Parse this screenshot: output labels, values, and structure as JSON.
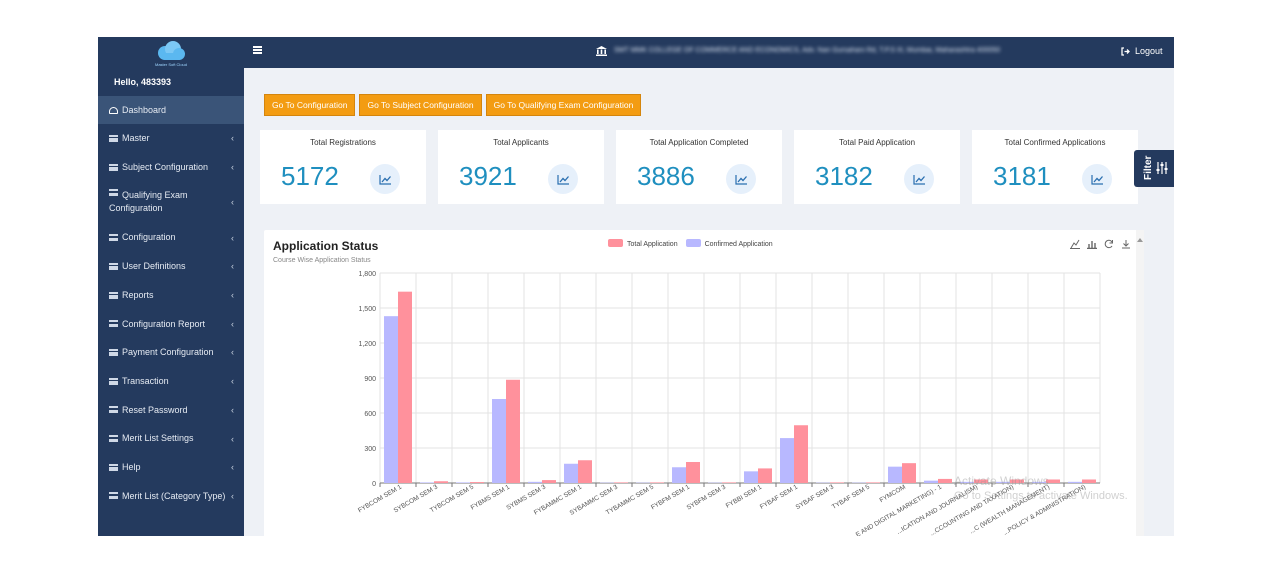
{
  "sidebar": {
    "logo_text": "Master Soft Cloud",
    "greeting": "Hello, 483393",
    "items": [
      {
        "label": "Dashboard",
        "active": true,
        "chevron": false,
        "icon": "dashboard-icon"
      },
      {
        "label": "Master",
        "chevron": true,
        "icon": "list-icon"
      },
      {
        "label": "Subject Configuration",
        "chevron": true,
        "icon": "list-icon"
      },
      {
        "label": "Qualifying Exam",
        "label2": "Configuration",
        "chevron": true,
        "icon": "list-icon"
      },
      {
        "label": "Configuration",
        "chevron": true,
        "icon": "list-icon"
      },
      {
        "label": "User Definitions",
        "chevron": true,
        "icon": "list-icon"
      },
      {
        "label": "Reports",
        "chevron": true,
        "icon": "list-icon"
      },
      {
        "label": "Configuration Report",
        "chevron": true,
        "icon": "list-icon"
      },
      {
        "label": "Payment Configuration",
        "chevron": true,
        "icon": "list-icon"
      },
      {
        "label": "Transaction",
        "chevron": true,
        "icon": "list-icon"
      },
      {
        "label": "Reset Password",
        "chevron": true,
        "icon": "list-icon"
      },
      {
        "label": "Merit List Settings",
        "chevron": true,
        "icon": "list-icon"
      },
      {
        "label": "Help",
        "chevron": true,
        "icon": "list-icon"
      },
      {
        "label": "Merit List (Category Type)",
        "chevron": true,
        "icon": "list-icon"
      }
    ]
  },
  "header": {
    "college_name": "SMT MMK COLLEGE OF COMMERCE AND ECONOMICS, Adv. Nari Gursahani Rd, T.P.S III, Mumbai, Maharashtra 400050",
    "logout_label": "Logout"
  },
  "buttons": {
    "go_config": "Go To Configuration",
    "go_subject_config": "Go To Subject Configuration",
    "go_qualifying_config": "Go To Qualifying Exam Configuration"
  },
  "stats": [
    {
      "title": "Total Registrations",
      "value": "5172"
    },
    {
      "title": "Total Applicants",
      "value": "3921"
    },
    {
      "title": "Total Application Completed",
      "value": "3886"
    },
    {
      "title": "Total Paid Application",
      "value": "3182"
    },
    {
      "title": "Total Confirmed Applications",
      "value": "3181"
    }
  ],
  "filter_label": "Filter",
  "colors": {
    "sidebar_bg": "#243a5e",
    "accent_orange": "#f39c12",
    "stat_number": "#1f8fbf",
    "total_series": "#ff919c",
    "confirmed_series": "#b8b8ff"
  },
  "chart_data": {
    "type": "bar",
    "title": "Application Status",
    "subtitle": "Course  Wise Application Status",
    "legend_position": "top",
    "grid": true,
    "ylim": [
      0,
      1800
    ],
    "yticks": [
      "0",
      "300",
      "600",
      "900",
      "1,200",
      "1,500",
      "1,800"
    ],
    "categories": [
      "FYBCOM SEM 1",
      "SYBCOM SEM 3",
      "TYBCOM SEM 5",
      "FYBMS SEM 1",
      "SYBMS SEM 3",
      "FYBAMMC SEM 1",
      "SYBAMMC SEM 3",
      "TYBAMMC SEM 5",
      "FYBFM SEM 1",
      "SYBFM SEM 3",
      "FYBBI SEM 1",
      "FYBAF SEM 1",
      "SYBAF SEM 3",
      "TYBAF SEM 5",
      "FYMCOM",
      "...E AND DIGITAL MARKETING) - 1",
      "...ICATION AND JOURNALISM)",
      "...CCOUNTING AND TAXATION)",
      "...C (WEALTH MANAGEMENT)",
      "...POLICY & ADMINISTRATION)"
    ],
    "series": [
      {
        "name": "Confirmed Application",
        "color": "#b8b8ff",
        "values": [
          1430,
          5,
          5,
          720,
          10,
          165,
          3,
          3,
          135,
          3,
          100,
          385,
          3,
          3,
          140,
          20,
          10,
          10,
          10,
          10
        ]
      },
      {
        "name": "Total Application",
        "color": "#ff919c",
        "values": [
          1640,
          15,
          8,
          885,
          25,
          195,
          5,
          5,
          180,
          5,
          125,
          495,
          5,
          5,
          170,
          35,
          30,
          30,
          30,
          30
        ]
      }
    ]
  },
  "watermark": {
    "line1": "Activate Windows",
    "line2": "Go to Settings to activate Windows."
  }
}
